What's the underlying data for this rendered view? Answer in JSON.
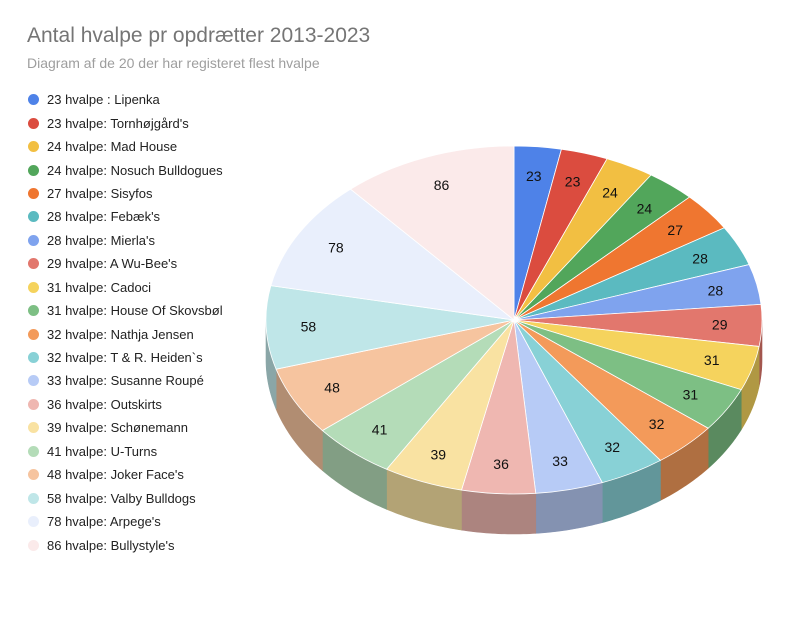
{
  "chart_data": {
    "type": "pie",
    "title": "Antal hvalpe pr opdrætter 2013-2023",
    "subtitle": "Diagram af de 20 der har registeret flest hvalpe",
    "legend_position": "left",
    "style": "3d",
    "categories": [
      "23 hvalpe : Lipenka",
      "23 hvalpe: Tornhøjgård's",
      "24 hvalpe: Mad House",
      "24 hvalpe: Nosuch Bulldogues",
      "27 hvalpe: Sisyfos",
      "28 hvalpe: Febæk's",
      "28 hvalpe: Mierla's",
      "29 hvalpe: A Wu-Bee's",
      "31 hvalpe: Cadoci",
      "31 hvalpe: House Of Skovsbøl",
      "32 hvalpe: Nathja Jensen",
      "32 hvalpe: T & R. Heiden`s",
      "33 hvalpe: Susanne Roupé",
      "36 hvalpe: Outskirts",
      "39 hvalpe: Schønemann",
      "41 hvalpe: U-Turns",
      "48 hvalpe: Joker Face's",
      "58 hvalpe: Valby Bulldogs",
      "78 hvalpe: Arpege's",
      "86 hvalpe: Bullystyle's"
    ],
    "values": [
      23,
      23,
      24,
      24,
      27,
      28,
      28,
      29,
      31,
      31,
      32,
      32,
      33,
      36,
      39,
      41,
      48,
      58,
      78,
      86
    ],
    "colors": [
      "#4e82e8",
      "#db4c3f",
      "#f2bf42",
      "#52a65b",
      "#ef7630",
      "#5bbac0",
      "#7fa3ee",
      "#e2776d",
      "#f5d35d",
      "#7dbf84",
      "#f39a5a",
      "#88d1d6",
      "#b7cbf6",
      "#efb7b1",
      "#f9e2a2",
      "#b4dcb8",
      "#f6c49f",
      "#bfe6e8",
      "#e9effc",
      "#fbeaea"
    ]
  }
}
